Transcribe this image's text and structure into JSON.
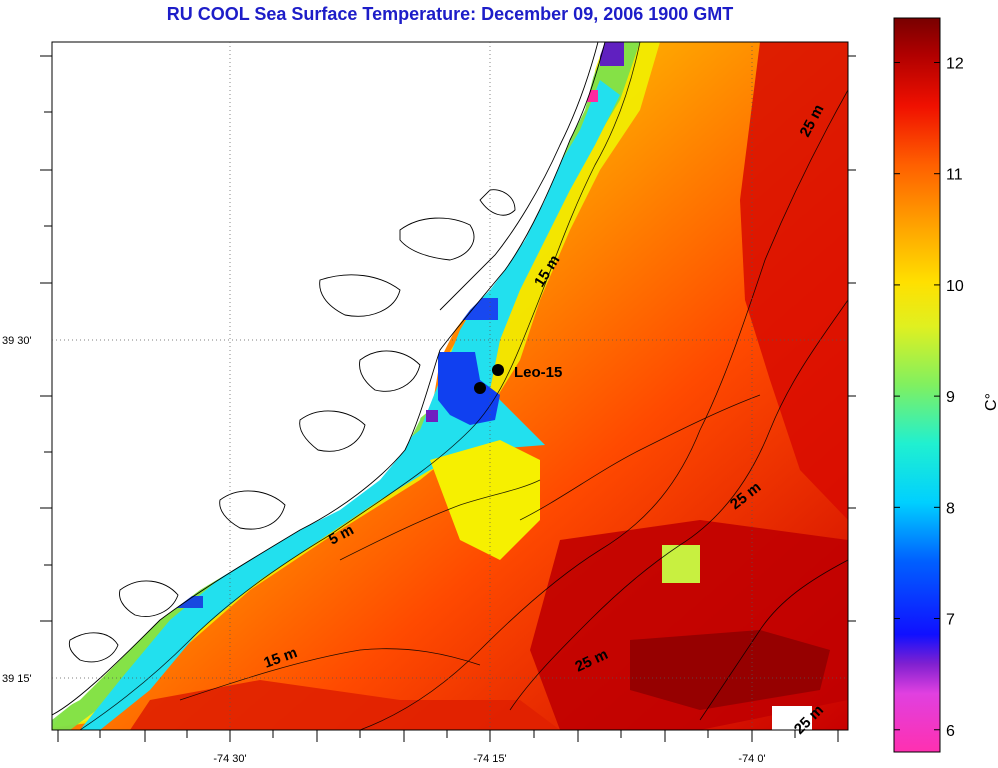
{
  "title": "RU COOL  Sea Surface Temperature:  December 09, 2006 1900 GMT",
  "axes": {
    "lat_ticks": [
      {
        "label": "39 30'",
        "value": 39.5
      },
      {
        "label": "39 15'",
        "value": 39.25
      }
    ],
    "lon_ticks": [
      {
        "label": "-74 30'",
        "value": -74.5
      },
      {
        "label": "-74 15'",
        "value": -74.25
      },
      {
        "label": "-74 0'",
        "value": -74.0
      }
    ]
  },
  "colorbar": {
    "unit_label": "C°",
    "ticks": [
      "6",
      "7",
      "8",
      "9",
      "10",
      "11",
      "12"
    ],
    "min": 5.8,
    "max": 12.4
  },
  "station": {
    "label": "Leo-15"
  },
  "depth_labels": [
    "25 m",
    "15 m",
    "5 m",
    "25 m",
    "15 m",
    "25 m",
    "25 m"
  ],
  "colors": {
    "title": "#1d1dc8",
    "land": "#ffffff",
    "coast_line": "#000000"
  }
}
